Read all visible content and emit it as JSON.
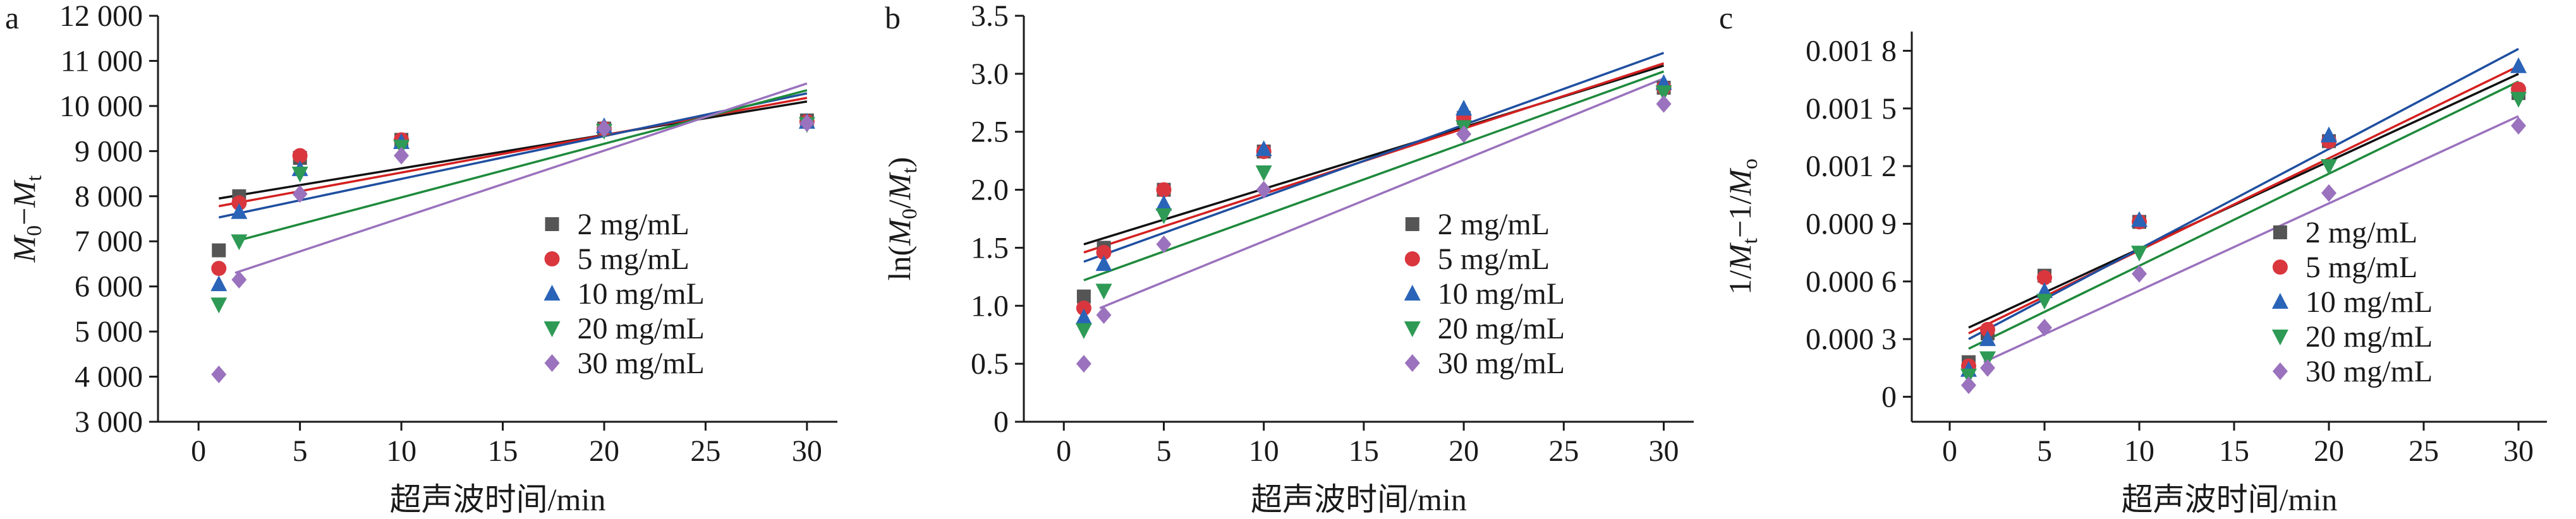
{
  "figure": {
    "xlabel_shared": "超声波时间/min",
    "legend_labels": [
      "2 mg/mL",
      "5 mg/mL",
      "10 mg/mL",
      "20 mg/mL",
      "30 mg/mL"
    ],
    "colors": {
      "2 mg/mL": "#555555",
      "5 mg/mL": "#d9363e",
      "10 mg/mL": "#2a64b8",
      "20 mg/mL": "#2e9a55",
      "30 mg/mL": "#9a72bd"
    },
    "fit_line_colors": [
      "#111111",
      "#d42020",
      "#1f4fa0",
      "#1e8a3c",
      "#9a72bd"
    ],
    "markers": [
      "square",
      "circle",
      "triangle-up",
      "triangle-down",
      "diamond"
    ]
  },
  "chart_data": [
    {
      "panel": "a",
      "type": "scatter",
      "title": "",
      "xlabel": "超声波时间/min",
      "ylabel": "M0−Mt",
      "xlim": [
        -2,
        31.5
      ],
      "ylim": [
        3000,
        12000
      ],
      "xticks": [
        0,
        5,
        10,
        15,
        20,
        25,
        30
      ],
      "xtick_labels": [
        "0",
        "5",
        "10",
        "15",
        "20",
        "25",
        "30"
      ],
      "yticks": [
        3000,
        4000,
        5000,
        6000,
        7000,
        8000,
        9000,
        10000,
        11000,
        12000
      ],
      "ytick_labels": [
        "3 000",
        "4 000",
        "5 000",
        "6 000",
        "7 000",
        "8 000",
        "9 000",
        "10 000",
        "11 000",
        "12 000"
      ],
      "legend_position": "lower-right",
      "x": [
        1,
        2,
        5,
        10,
        20,
        30
      ],
      "series": [
        {
          "name": "2 mg/mL",
          "y": [
            6800,
            8000,
            8850,
            9250,
            9500,
            9680
          ],
          "fit": [
            [
              1,
              7950
            ],
            [
              30,
              10100
            ]
          ]
        },
        {
          "name": "5 mg/mL",
          "y": [
            6400,
            7850,
            8900,
            9250,
            9500,
            9650
          ],
          "fit": [
            [
              1,
              7780
            ],
            [
              30,
              10180
            ]
          ]
        },
        {
          "name": "10 mg/mL",
          "y": [
            6050,
            7650,
            8600,
            9200,
            9550,
            9650
          ],
          "fit": [
            [
              1,
              7530
            ],
            [
              30,
              10280
            ]
          ]
        },
        {
          "name": "20 mg/mL",
          "y": [
            5600,
            7000,
            8500,
            9100,
            9450,
            9600
          ],
          "fit": [
            [
              1.8,
              7000
            ],
            [
              30,
              10350
            ]
          ]
        },
        {
          "name": "30 mg/mL",
          "y": [
            4050,
            6150,
            8050,
            8900,
            9500,
            9620
          ],
          "fit": [
            [
              1.8,
              6300
            ],
            [
              30,
              10500
            ]
          ]
        }
      ]
    },
    {
      "panel": "b",
      "type": "scatter",
      "title": "",
      "xlabel": "超声波时间/min",
      "ylabel": "ln(M0/Mt)",
      "xlim": [
        -2,
        31.5
      ],
      "ylim": [
        0,
        3.5
      ],
      "xticks": [
        0,
        5,
        10,
        15,
        20,
        25,
        30
      ],
      "xtick_labels": [
        "0",
        "5",
        "10",
        "15",
        "20",
        "25",
        "30"
      ],
      "yticks": [
        0,
        0.5,
        1.0,
        1.5,
        2.0,
        2.5,
        3.0,
        3.5
      ],
      "ytick_labels": [
        "0",
        "0.5",
        "1.0",
        "1.5",
        "2.0",
        "2.5",
        "3.0",
        "3.5"
      ],
      "legend_position": "lower-right",
      "x": [
        1,
        2,
        5,
        10,
        20,
        30
      ],
      "series": [
        {
          "name": "2 mg/mL",
          "y": [
            1.08,
            1.5,
            2.0,
            2.33,
            2.62,
            2.88
          ],
          "fit": [
            [
              1,
              1.53
            ],
            [
              30,
              3.07
            ]
          ]
        },
        {
          "name": "5 mg/mL",
          "y": [
            0.98,
            1.46,
            2.0,
            2.33,
            2.62,
            2.88
          ],
          "fit": [
            [
              1,
              1.46
            ],
            [
              30,
              3.09
            ]
          ]
        },
        {
          "name": "10 mg/mL",
          "y": [
            0.9,
            1.36,
            1.88,
            2.35,
            2.7,
            2.92
          ],
          "fit": [
            [
              1,
              1.38
            ],
            [
              30,
              3.18
            ]
          ]
        },
        {
          "name": "20 mg/mL",
          "y": [
            0.79,
            1.13,
            1.78,
            2.15,
            2.54,
            2.84
          ],
          "fit": [
            [
              1,
              1.22
            ],
            [
              30,
              3.02
            ]
          ]
        },
        {
          "name": "30 mg/mL",
          "y": [
            0.5,
            0.92,
            1.53,
            2.0,
            2.48,
            2.74
          ],
          "fit": [
            [
              1.8,
              0.98
            ],
            [
              30,
              2.96
            ]
          ]
        }
      ]
    },
    {
      "panel": "c",
      "type": "scatter",
      "title": "",
      "xlabel": "超声波时间/min",
      "ylabel": "1/Mt−1/Mo",
      "xlim": [
        -2,
        31.5
      ],
      "ylim": [
        -0.00013,
        0.0019
      ],
      "xticks": [
        0,
        5,
        10,
        15,
        20,
        25,
        30
      ],
      "xtick_labels": [
        "0",
        "5",
        "10",
        "15",
        "20",
        "25",
        "30"
      ],
      "yticks": [
        0,
        0.0003,
        0.0006,
        0.0009,
        0.0012,
        0.0015,
        0.0018
      ],
      "ytick_labels": [
        "0",
        "0.000 3",
        "0.000 6",
        "0.000 9",
        "0.001 2",
        "0.001 5",
        "0.001 8"
      ],
      "legend_position": "lower-right",
      "x": [
        1,
        2,
        5,
        10,
        20,
        30
      ],
      "series": [
        {
          "name": "2 mg/mL",
          "y": [
            0.00018,
            0.00033,
            0.00063,
            0.00091,
            0.00133,
            0.00158
          ],
          "fit": [
            [
              1,
              0.00036
            ],
            [
              30,
              0.00168
            ]
          ]
        },
        {
          "name": "5 mg/mL",
          "y": [
            0.00016,
            0.00035,
            0.00062,
            0.00091,
            0.00133,
            0.0016
          ],
          "fit": [
            [
              1,
              0.00033
            ],
            [
              30,
              0.00172
            ]
          ]
        },
        {
          "name": "10 mg/mL",
          "y": [
            0.00014,
            0.0003,
            0.00055,
            0.00092,
            0.00136,
            0.00172
          ],
          "fit": [
            [
              1,
              0.0003
            ],
            [
              30,
              0.00181
            ]
          ]
        },
        {
          "name": "20 mg/mL",
          "y": [
            0.00011,
            0.0002,
            0.0005,
            0.00075,
            0.0012,
            0.00155
          ],
          "fit": [
            [
              1,
              0.00025
            ],
            [
              30,
              0.00164
            ]
          ]
        },
        {
          "name": "30 mg/mL",
          "y": [
            6e-05,
            0.00015,
            0.00036,
            0.00064,
            0.00106,
            0.00141
          ],
          "fit": [
            [
              1.8,
              0.00018
            ],
            [
              30,
              0.00146
            ]
          ]
        }
      ]
    }
  ]
}
